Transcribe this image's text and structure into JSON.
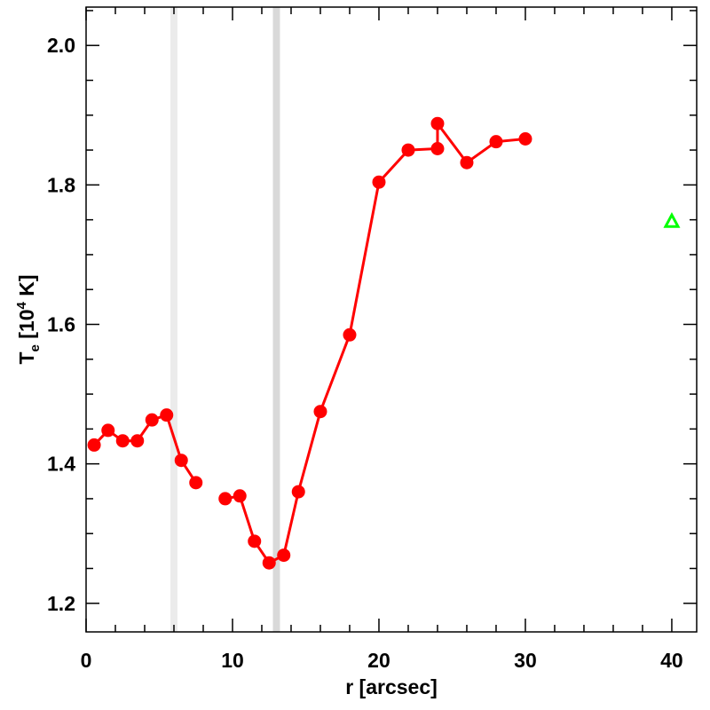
{
  "chart_data": {
    "type": "line",
    "xlabel": "r [arcsec]",
    "ylabel_parts": [
      "T",
      "e",
      " [10",
      "4",
      " K]"
    ],
    "xlim": [
      0,
      41.7
    ],
    "ylim": [
      1.159,
      2.055
    ],
    "xticks": [
      0,
      10,
      20,
      30,
      40
    ],
    "yticks": [
      1.2,
      1.4,
      1.6,
      1.8,
      {
        "value": 2,
        "label": "2.0"
      }
    ],
    "xminorticks": [
      2,
      4,
      6,
      8,
      12,
      14,
      16,
      18,
      22,
      24,
      26,
      28,
      32,
      34,
      36,
      38
    ],
    "yminorticks": [
      1.25,
      1.3,
      1.35,
      1.45,
      1.5,
      1.55,
      1.65,
      1.7,
      1.75,
      1.85,
      1.9,
      1.95,
      2.05
    ],
    "bands": [
      {
        "xrange": [
          5.76,
          6.24
        ],
        "color": "#ebebeb"
      },
      {
        "xrange": [
          12.76,
          13.24
        ],
        "color": "#d9d9d9"
      }
    ],
    "series": [
      {
        "color": "#ff0000",
        "marker": "circle",
        "x": [
          0.55,
          1.5,
          2.5,
          3.5,
          4.5,
          5.5,
          6.5,
          7.5,
          null,
          9.5,
          10.5,
          11.5,
          12.5,
          13.5,
          14.5,
          16,
          18,
          20,
          22,
          24,
          24,
          26,
          28,
          30
        ],
        "values": [
          1.427,
          1.448,
          1.433,
          1.433,
          1.463,
          1.47,
          1.405,
          1.373,
          null,
          1.35,
          1.354,
          1.289,
          1.258,
          1.269,
          1.36,
          1.475,
          1.585,
          1.804,
          1.85,
          1.852,
          1.888,
          1.832,
          1.862,
          1.866
        ]
      },
      {
        "color": "#00ff00",
        "marker": "open-triangle",
        "x": [
          40
        ],
        "values": [
          1.748
        ]
      }
    ]
  }
}
